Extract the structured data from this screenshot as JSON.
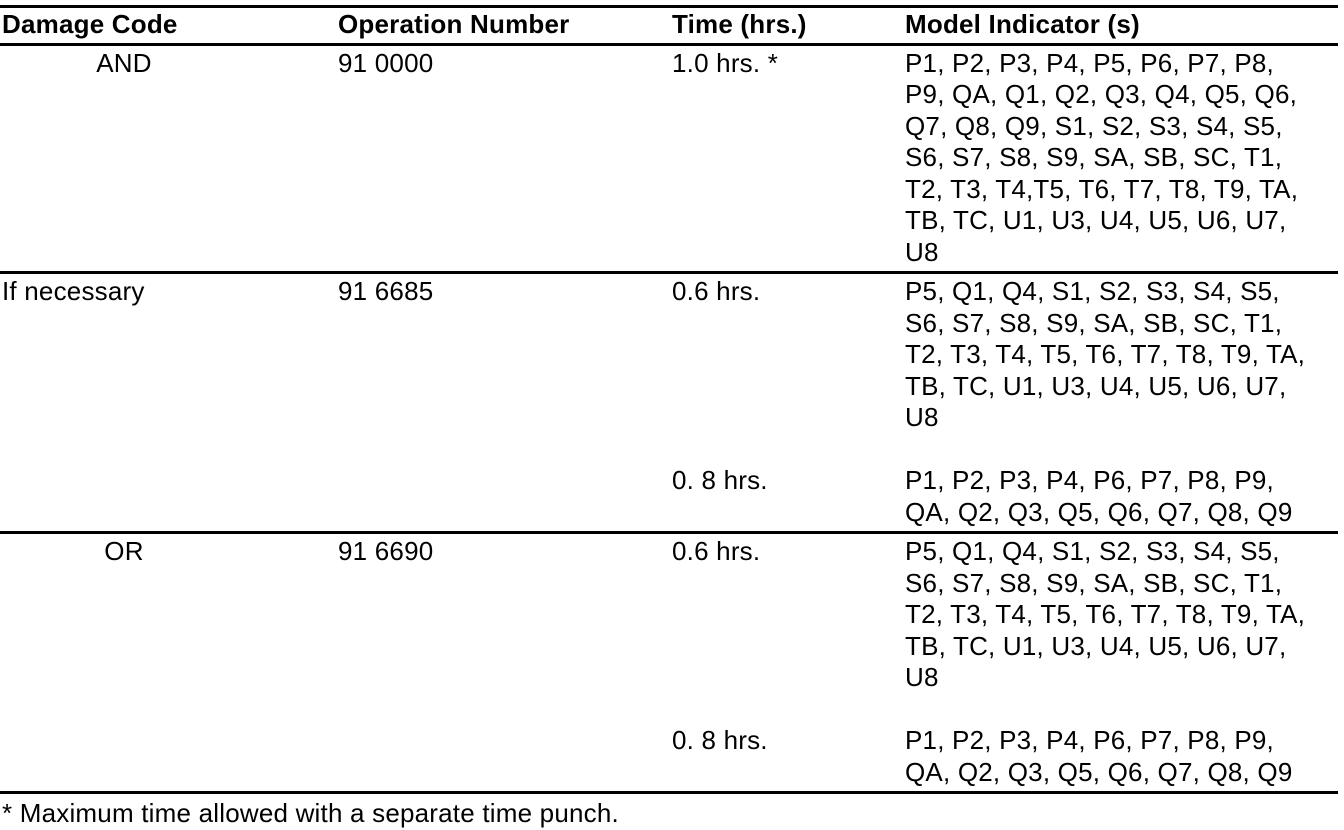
{
  "table": {
    "headers": {
      "damage_code": "Damage Code",
      "operation_number": "Operation Number",
      "time": "Time (hrs.)",
      "model_indicator": "Model Indicator (s)"
    },
    "rows": [
      {
        "damage_code": "AND",
        "operation_number": "91 0000",
        "entries": [
          {
            "time": "1.0 hrs. *",
            "models": "P1, P2, P3, P4, P5, P6, P7, P8,\nP9, QA, Q1, Q2, Q3, Q4, Q5, Q6,\nQ7, Q8, Q9, S1, S2, S3, S4, S5,\nS6, S7, S8, S9, SA, SB, SC, T1,\nT2, T3, T4,T5, T6, T7, T8, T9, TA,\nTB, TC, U1, U3, U4, U5, U6, U7,\nU8"
          }
        ]
      },
      {
        "damage_code": "If necessary",
        "operation_number": "91 6685",
        "entries": [
          {
            "time": "0.6 hrs.",
            "models": "P5, Q1, Q4, S1, S2, S3, S4, S5,\nS6, S7, S8, S9, SA, SB, SC, T1,\nT2, T3, T4, T5, T6, T7, T8, T9, TA,\nTB, TC, U1, U3, U4, U5, U6, U7,\nU8"
          },
          {
            "time": "0. 8 hrs.",
            "models": "P1, P2, P3, P4, P6, P7, P8, P9,\nQA, Q2, Q3, Q5, Q6, Q7, Q8, Q9"
          }
        ]
      },
      {
        "damage_code": "OR",
        "operation_number": "91 6690",
        "entries": [
          {
            "time": "0.6 hrs.",
            "models": "P5, Q1, Q4, S1, S2, S3, S4, S5,\nS6, S7, S8, S9, SA, SB, SC, T1,\nT2, T3, T4, T5, T6, T7, T8, T9, TA,\nTB, TC, U1, U3, U4, U5, U6, U7,\nU8"
          },
          {
            "time": "0. 8 hrs.",
            "models": "P1, P2, P3, P4, P6, P7, P8, P9,\nQA, Q2, Q3, Q5, Q6, Q7, Q8, Q9"
          }
        ]
      }
    ],
    "footnote": "* Maximum time allowed with a separate time punch."
  }
}
